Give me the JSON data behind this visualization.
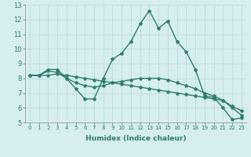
{
  "title": "",
  "xlabel": "Humidex (Indice chaleur)",
  "background_color": "#d6eef0",
  "grid_color": "#b8d8dc",
  "line_color": "#2e7d6e",
  "xlim": [
    -0.5,
    23.5
  ],
  "ylim": [
    5,
    13
  ],
  "x_ticks": [
    0,
    1,
    2,
    3,
    4,
    5,
    6,
    7,
    8,
    9,
    10,
    11,
    12,
    13,
    14,
    15,
    16,
    17,
    18,
    19,
    20,
    21,
    22,
    23
  ],
  "y_ticks": [
    5,
    6,
    7,
    8,
    9,
    10,
    11,
    12,
    13
  ],
  "line1_x": [
    0,
    1,
    2,
    3,
    4,
    5,
    6,
    7,
    8,
    9,
    10,
    11,
    12,
    13,
    14,
    15,
    16,
    17,
    18,
    19,
    20,
    21,
    22,
    23
  ],
  "line1_y": [
    8.2,
    8.2,
    8.6,
    8.6,
    8.0,
    7.3,
    6.6,
    6.6,
    8.0,
    9.3,
    9.7,
    10.5,
    11.7,
    12.6,
    11.4,
    11.9,
    10.5,
    9.8,
    8.6,
    6.8,
    6.7,
    6.0,
    5.2,
    5.3
  ],
  "line2_x": [
    0,
    1,
    2,
    3,
    4,
    5,
    6,
    7,
    8,
    9,
    10,
    11,
    12,
    13,
    14,
    15,
    16,
    17,
    18,
    19,
    20,
    21,
    22,
    23
  ],
  "line2_y": [
    8.2,
    8.2,
    8.5,
    8.4,
    8.0,
    7.7,
    7.5,
    7.4,
    7.5,
    7.7,
    7.8,
    7.9,
    8.0,
    8.0,
    8.0,
    7.9,
    7.7,
    7.5,
    7.3,
    7.0,
    6.8,
    6.5,
    6.1,
    5.8
  ],
  "line3_x": [
    0,
    1,
    2,
    3,
    4,
    5,
    6,
    7,
    8,
    9,
    10,
    11,
    12,
    13,
    14,
    15,
    16,
    17,
    18,
    19,
    20,
    21,
    22,
    23
  ],
  "line3_y": [
    8.2,
    8.2,
    8.2,
    8.3,
    8.2,
    8.1,
    8.0,
    7.9,
    7.8,
    7.7,
    7.6,
    7.5,
    7.4,
    7.3,
    7.2,
    7.1,
    7.0,
    6.9,
    6.8,
    6.7,
    6.6,
    6.5,
    6.0,
    5.5
  ],
  "xlabel_fontsize": 6.5,
  "tick_fontsize_x": 5.0,
  "tick_fontsize_y": 6.0,
  "linewidth": 1.0,
  "markersize": 3.0
}
